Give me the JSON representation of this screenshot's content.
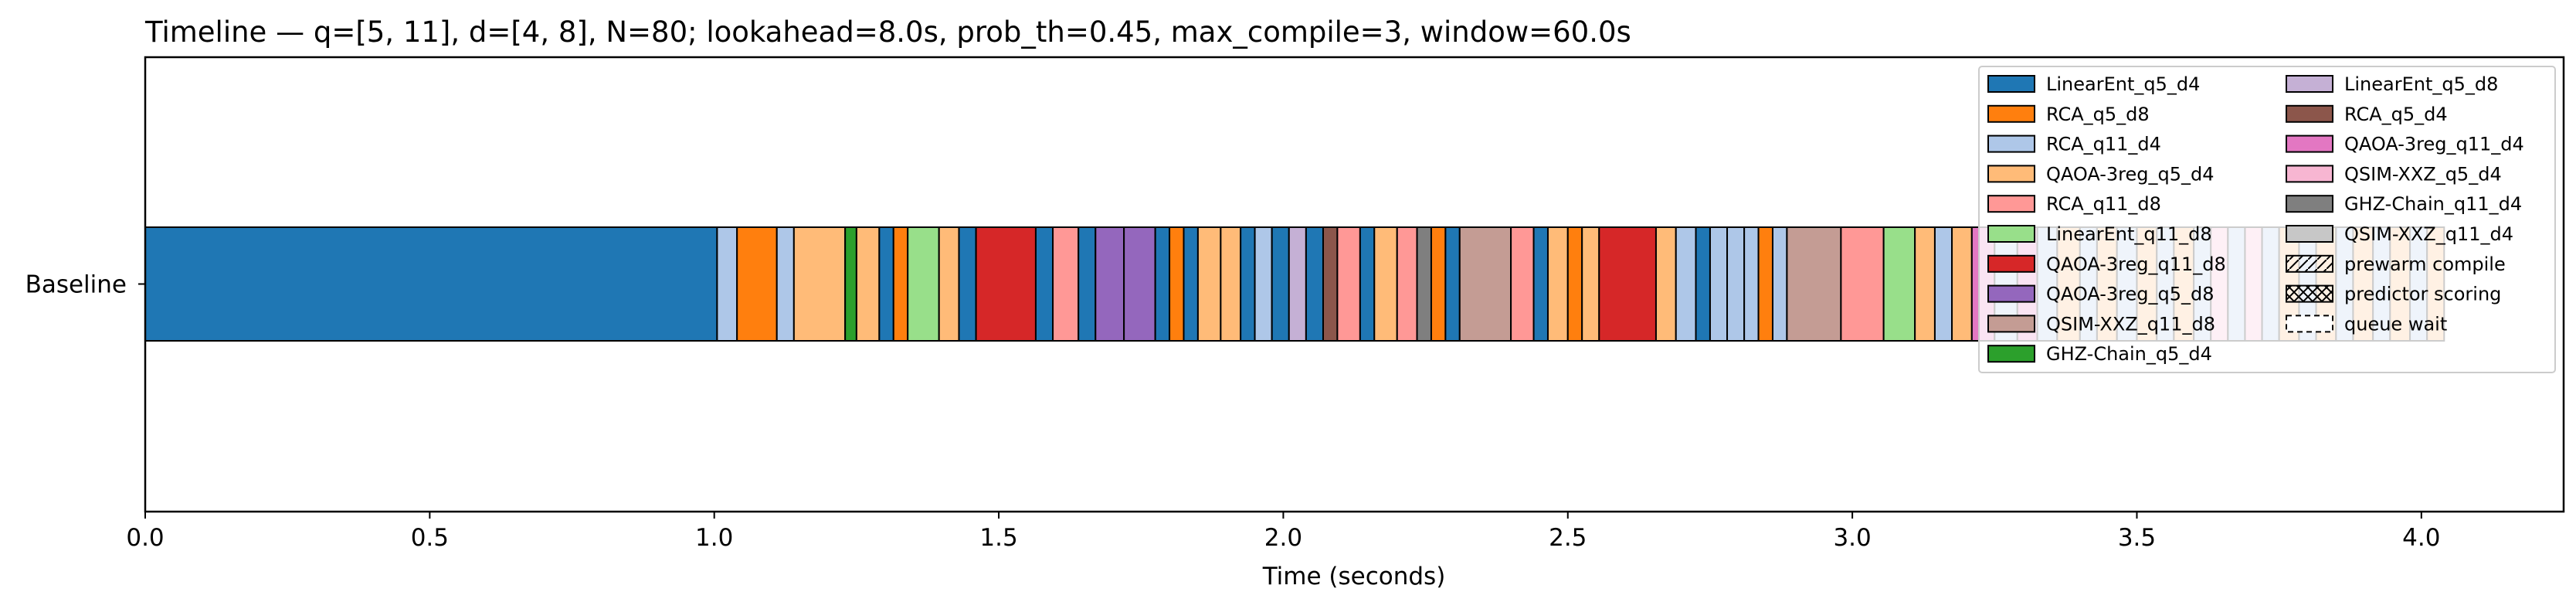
{
  "chart_data": {
    "type": "bar",
    "orientation": "horizontal",
    "title": "Timeline — q=[5, 11], d=[4, 8], N=80; lookahead=8.0s, prob_th=0.45, max_compile=3, window=60.0s",
    "xlabel": "Time (seconds)",
    "ylabel": "",
    "xlim": [
      0.0,
      4.25
    ],
    "x_ticks": [
      "0.0",
      "0.5",
      "1.0",
      "1.5",
      "2.0",
      "2.5",
      "3.0",
      "3.5",
      "4.0"
    ],
    "categories": [
      "Baseline"
    ],
    "grid": false,
    "legend_position": "top-right",
    "series_colors": {
      "LinearEnt_q5_d4": "#1f77b4",
      "RCA_q5_d8": "#ff7f0e",
      "RCA_q11_d4": "#aec7e8",
      "QAOA-3reg_q5_d4": "#ffbb78",
      "RCA_q11_d8": "#ff9896",
      "LinearEnt_q11_d8": "#98df8a",
      "QAOA-3reg_q11_d8": "#d62728",
      "QAOA-3reg_q5_d8": "#9467bd",
      "QSIM-XXZ_q11_d8": "#c49c94",
      "GHZ-Chain_q5_d4": "#2ca02c",
      "LinearEnt_q5_d8": "#c5b0d5",
      "RCA_q5_d4": "#8c564b",
      "QAOA-3reg_q11_d4": "#e377c2",
      "QSIM-XXZ_q5_d4": "#f7b6d2",
      "GHZ-Chain_q11_d4": "#7f7f7f",
      "QSIM-XXZ_q11_d4": "#c7c7c7"
    },
    "legend": [
      {
        "label": "LinearEnt_q5_d4",
        "kind": "color"
      },
      {
        "label": "RCA_q5_d8",
        "kind": "color"
      },
      {
        "label": "RCA_q11_d4",
        "kind": "color"
      },
      {
        "label": "QAOA-3reg_q5_d4",
        "kind": "color"
      },
      {
        "label": "RCA_q11_d8",
        "kind": "color"
      },
      {
        "label": "LinearEnt_q11_d8",
        "kind": "color"
      },
      {
        "label": "QAOA-3reg_q11_d8",
        "kind": "color"
      },
      {
        "label": "QAOA-3reg_q5_d8",
        "kind": "color"
      },
      {
        "label": "QSIM-XXZ_q11_d8",
        "kind": "color"
      },
      {
        "label": "GHZ-Chain_q5_d4",
        "kind": "color"
      },
      {
        "label": "LinearEnt_q5_d8",
        "kind": "color"
      },
      {
        "label": "RCA_q5_d4",
        "kind": "color"
      },
      {
        "label": "QAOA-3reg_q11_d4",
        "kind": "color"
      },
      {
        "label": "QSIM-XXZ_q5_d4",
        "kind": "color"
      },
      {
        "label": "GHZ-Chain_q11_d4",
        "kind": "color"
      },
      {
        "label": "QSIM-XXZ_q11_d4",
        "kind": "color"
      },
      {
        "label": "prewarm compile",
        "kind": "hatch-slash"
      },
      {
        "label": "predictor scoring",
        "kind": "hatch-x"
      },
      {
        "label": "queue wait",
        "kind": "dashed"
      }
    ],
    "segments": [
      {
        "series": "LinearEnt_q5_d4",
        "start": 0.0,
        "end": 1.005
      },
      {
        "series": "RCA_q11_d4",
        "start": 1.005,
        "end": 1.04
      },
      {
        "series": "RCA_q5_d8",
        "start": 1.04,
        "end": 1.11
      },
      {
        "series": "RCA_q11_d4",
        "start": 1.11,
        "end": 1.14
      },
      {
        "series": "QAOA-3reg_q5_d4",
        "start": 1.14,
        "end": 1.23
      },
      {
        "series": "GHZ-Chain_q5_d4",
        "start": 1.23,
        "end": 1.25
      },
      {
        "series": "QAOA-3reg_q5_d4",
        "start": 1.25,
        "end": 1.29
      },
      {
        "series": "LinearEnt_q5_d4",
        "start": 1.29,
        "end": 1.315
      },
      {
        "series": "RCA_q5_d8",
        "start": 1.315,
        "end": 1.34
      },
      {
        "series": "LinearEnt_q11_d8",
        "start": 1.34,
        "end": 1.395
      },
      {
        "series": "QAOA-3reg_q5_d4",
        "start": 1.395,
        "end": 1.43
      },
      {
        "series": "LinearEnt_q5_d4",
        "start": 1.43,
        "end": 1.46
      },
      {
        "series": "QAOA-3reg_q11_d8",
        "start": 1.46,
        "end": 1.565
      },
      {
        "series": "LinearEnt_q5_d4",
        "start": 1.565,
        "end": 1.595
      },
      {
        "series": "RCA_q11_d8",
        "start": 1.595,
        "end": 1.64
      },
      {
        "series": "LinearEnt_q5_d4",
        "start": 1.64,
        "end": 1.67
      },
      {
        "series": "QAOA-3reg_q5_d8",
        "start": 1.67,
        "end": 1.72
      },
      {
        "series": "QAOA-3reg_q5_d8",
        "start": 1.72,
        "end": 1.775
      },
      {
        "series": "LinearEnt_q5_d4",
        "start": 1.775,
        "end": 1.8
      },
      {
        "series": "RCA_q5_d8",
        "start": 1.8,
        "end": 1.825
      },
      {
        "series": "LinearEnt_q5_d4",
        "start": 1.825,
        "end": 1.85
      },
      {
        "series": "QAOA-3reg_q5_d4",
        "start": 1.85,
        "end": 1.89
      },
      {
        "series": "QAOA-3reg_q5_d4",
        "start": 1.89,
        "end": 1.925
      },
      {
        "series": "LinearEnt_q5_d4",
        "start": 1.925,
        "end": 1.95
      },
      {
        "series": "RCA_q11_d4",
        "start": 1.95,
        "end": 1.98
      },
      {
        "series": "LinearEnt_q5_d4",
        "start": 1.98,
        "end": 2.01
      },
      {
        "series": "LinearEnt_q5_d8",
        "start": 2.01,
        "end": 2.04
      },
      {
        "series": "LinearEnt_q5_d4",
        "start": 2.04,
        "end": 2.07
      },
      {
        "series": "RCA_q5_d4",
        "start": 2.07,
        "end": 2.095
      },
      {
        "series": "RCA_q11_d8",
        "start": 2.095,
        "end": 2.135
      },
      {
        "series": "LinearEnt_q5_d4",
        "start": 2.135,
        "end": 2.16
      },
      {
        "series": "QAOA-3reg_q5_d4",
        "start": 2.16,
        "end": 2.2
      },
      {
        "series": "RCA_q11_d8",
        "start": 2.2,
        "end": 2.235
      },
      {
        "series": "GHZ-Chain_q11_d4",
        "start": 2.235,
        "end": 2.26
      },
      {
        "series": "RCA_q5_d8",
        "start": 2.26,
        "end": 2.285
      },
      {
        "series": "LinearEnt_q5_d4",
        "start": 2.285,
        "end": 2.31
      },
      {
        "series": "QSIM-XXZ_q11_d8",
        "start": 2.31,
        "end": 2.4
      },
      {
        "series": "RCA_q11_d8",
        "start": 2.4,
        "end": 2.44
      },
      {
        "series": "LinearEnt_q5_d4",
        "start": 2.44,
        "end": 2.465
      },
      {
        "series": "QAOA-3reg_q5_d4",
        "start": 2.465,
        "end": 2.5
      },
      {
        "series": "RCA_q5_d8",
        "start": 2.5,
        "end": 2.525
      },
      {
        "series": "QAOA-3reg_q5_d4",
        "start": 2.525,
        "end": 2.555
      },
      {
        "series": "QAOA-3reg_q11_d8",
        "start": 2.555,
        "end": 2.655
      },
      {
        "series": "QAOA-3reg_q5_d4",
        "start": 2.655,
        "end": 2.69
      },
      {
        "series": "RCA_q11_d4",
        "start": 2.69,
        "end": 2.725
      },
      {
        "series": "LinearEnt_q5_d4",
        "start": 2.725,
        "end": 2.75
      },
      {
        "series": "RCA_q11_d4",
        "start": 2.75,
        "end": 2.78
      },
      {
        "series": "RCA_q11_d4",
        "start": 2.78,
        "end": 2.81
      },
      {
        "series": "RCA_q11_d4",
        "start": 2.81,
        "end": 2.835
      },
      {
        "series": "RCA_q5_d8",
        "start": 2.835,
        "end": 2.86
      },
      {
        "series": "RCA_q11_d4",
        "start": 2.86,
        "end": 2.885
      },
      {
        "series": "QSIM-XXZ_q11_d8",
        "start": 2.885,
        "end": 2.98
      },
      {
        "series": "RCA_q11_d8",
        "start": 2.98,
        "end": 3.055
      },
      {
        "series": "LinearEnt_q11_d8",
        "start": 3.055,
        "end": 3.11
      },
      {
        "series": "QAOA-3reg_q5_d4",
        "start": 3.11,
        "end": 3.145
      },
      {
        "series": "RCA_q11_d4",
        "start": 3.145,
        "end": 3.175
      },
      {
        "series": "QAOA-3reg_q5_d4",
        "start": 3.175,
        "end": 3.21
      },
      {
        "series": "QAOA-3reg_q11_d4",
        "start": 3.21,
        "end": 3.25
      },
      {
        "series": "RCA_q11_d4",
        "start": 3.25,
        "end": 3.29
      },
      {
        "series": "QAOA-3reg_q11_d4",
        "start": 3.29,
        "end": 3.325
      },
      {
        "series": "RCA_q11_d4",
        "start": 3.325,
        "end": 3.36
      },
      {
        "series": "QAOA-3reg_q5_d4",
        "start": 3.36,
        "end": 3.4
      },
      {
        "series": "RCA_q11_d4",
        "start": 3.4,
        "end": 3.43
      },
      {
        "series": "QAOA-3reg_q5_d4",
        "start": 3.43,
        "end": 3.465
      },
      {
        "series": "RCA_q11_d4",
        "start": 3.465,
        "end": 3.5
      },
      {
        "series": "QAOA-3reg_q5_d4",
        "start": 3.5,
        "end": 3.535
      },
      {
        "series": "RCA_q11_d4",
        "start": 3.535,
        "end": 3.565
      },
      {
        "series": "QAOA-3reg_q5_d4",
        "start": 3.565,
        "end": 3.6
      },
      {
        "series": "RCA_q11_d4",
        "start": 3.6,
        "end": 3.63
      },
      {
        "series": "QSIM-XXZ_q5_d4",
        "start": 3.63,
        "end": 3.66
      },
      {
        "series": "RCA_q11_d4",
        "start": 3.66,
        "end": 3.69
      },
      {
        "series": "QSIM-XXZ_q5_d4",
        "start": 3.69,
        "end": 3.72
      },
      {
        "series": "RCA_q11_d4",
        "start": 3.72,
        "end": 3.75
      },
      {
        "series": "QAOA-3reg_q5_d4",
        "start": 3.75,
        "end": 3.785
      },
      {
        "series": "RCA_q11_d4",
        "start": 3.785,
        "end": 3.815
      },
      {
        "series": "QAOA-3reg_q5_d4",
        "start": 3.815,
        "end": 3.85
      },
      {
        "series": "RCA_q11_d4",
        "start": 3.85,
        "end": 3.88
      },
      {
        "series": "QAOA-3reg_q5_d4",
        "start": 3.88,
        "end": 3.915
      },
      {
        "series": "RCA_q11_d4",
        "start": 3.915,
        "end": 3.945
      },
      {
        "series": "QAOA-3reg_q5_d4",
        "start": 3.945,
        "end": 3.98
      },
      {
        "series": "RCA_q11_d4",
        "start": 3.98,
        "end": 4.01
      },
      {
        "series": "QAOA-3reg_q5_d4",
        "start": 4.01,
        "end": 4.04
      }
    ]
  }
}
